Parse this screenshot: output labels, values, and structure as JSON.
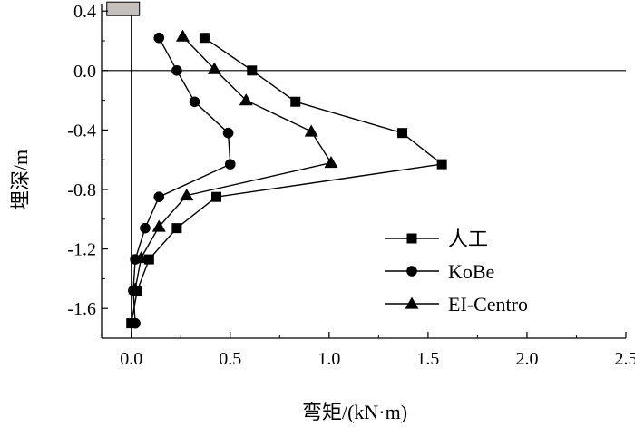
{
  "chart_data": {
    "type": "line",
    "title": "",
    "xlabel": "弯矩/(kN·m)",
    "ylabel": "埋深/m",
    "xlim": [
      -0.15,
      2.5
    ],
    "ylim": [
      -1.8,
      0.45
    ],
    "x_ticks": [
      "0.0",
      "0.5",
      "1.0",
      "1.5",
      "2.0",
      "2.5"
    ],
    "x_tick_values": [
      0.0,
      0.5,
      1.0,
      1.5,
      2.0,
      2.5
    ],
    "y_ticks": [
      "0.4",
      "0.0",
      "-0.4",
      "-0.8",
      "-1.2",
      "-1.6"
    ],
    "y_tick_values": [
      0.4,
      0.0,
      -0.4,
      -0.8,
      -1.2,
      -1.6
    ],
    "grid": false,
    "zero_line": true,
    "legend_position": "bottom-right",
    "series": [
      {
        "name": "人工",
        "marker": "square",
        "color": "#000000",
        "points": [
          [
            0.37,
            0.22
          ],
          [
            0.61,
            0.0
          ],
          [
            0.83,
            -0.21
          ],
          [
            1.37,
            -0.42
          ],
          [
            1.57,
            -0.63
          ],
          [
            0.43,
            -0.85
          ],
          [
            0.23,
            -1.06
          ],
          [
            0.09,
            -1.27
          ],
          [
            0.03,
            -1.48
          ],
          [
            0.0,
            -1.7
          ]
        ]
      },
      {
        "name": "KoBe",
        "marker": "circle",
        "color": "#000000",
        "points": [
          [
            0.14,
            0.22
          ],
          [
            0.23,
            0.0
          ],
          [
            0.32,
            -0.21
          ],
          [
            0.49,
            -0.42
          ],
          [
            0.5,
            -0.63
          ],
          [
            0.14,
            -0.85
          ],
          [
            0.07,
            -1.06
          ],
          [
            0.02,
            -1.27
          ],
          [
            0.01,
            -1.48
          ],
          [
            0.02,
            -1.7
          ]
        ]
      },
      {
        "name": "EI-Centro",
        "marker": "triangle",
        "color": "#000000",
        "points": [
          [
            0.26,
            0.23
          ],
          [
            0.42,
            0.01
          ],
          [
            0.58,
            -0.2
          ],
          [
            0.91,
            -0.41
          ],
          [
            1.01,
            -0.62
          ],
          [
            0.28,
            -0.84
          ],
          [
            0.14,
            -1.05
          ],
          [
            0.05,
            -1.26
          ],
          [
            0.02,
            -1.47
          ]
        ]
      }
    ]
  },
  "ground_marker_color": "#c6c0bd"
}
